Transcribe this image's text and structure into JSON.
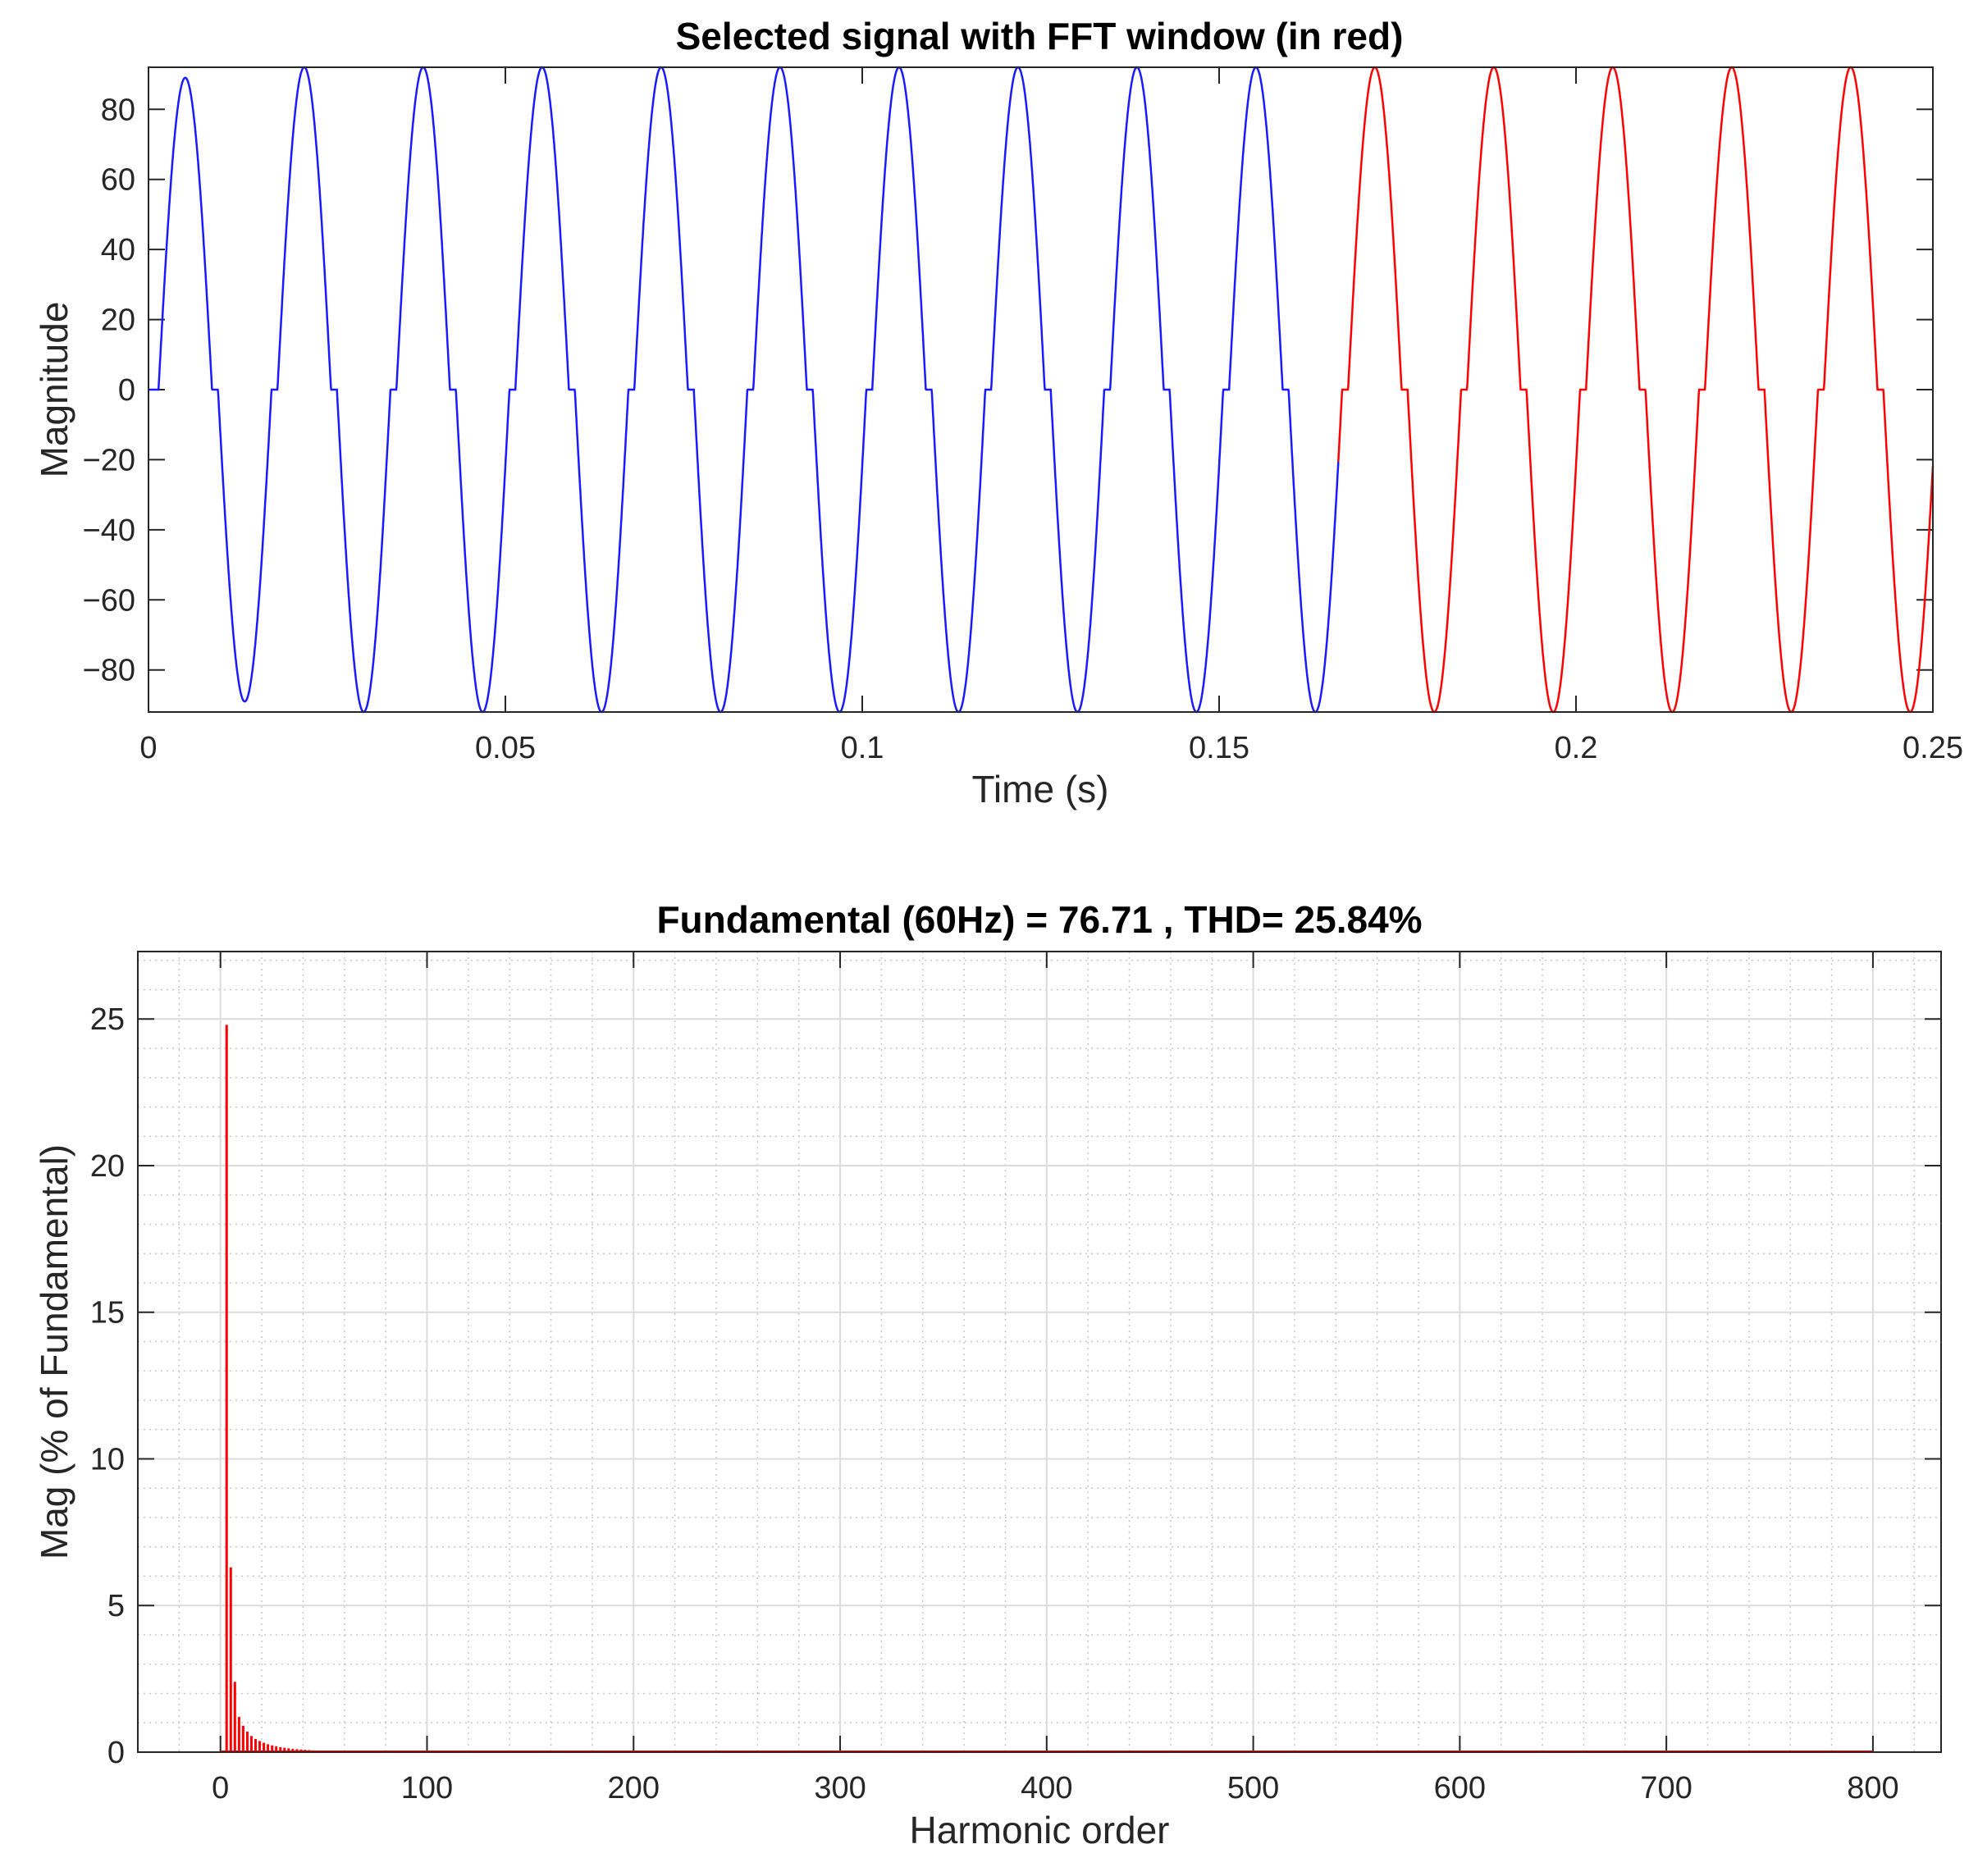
{
  "colors": {
    "signal": "#1a1aff",
    "fft_window": "#ff0000",
    "spectrum": "#ff0000",
    "grid_major": "#dcdcdc",
    "grid_minor": "#c8c8c8",
    "axes": "#262626"
  },
  "chart_data": [
    {
      "type": "line",
      "title": "Selected signal with FFT window (in red)",
      "xlabel": "Time (s)",
      "ylabel": "Magnitude",
      "xlim": [
        0,
        0.25
      ],
      "ylim": [
        -92,
        92
      ],
      "xticks": [
        0,
        0.05,
        0.1,
        0.15,
        0.2,
        0.25
      ],
      "xtick_labels": [
        "0",
        "0.05",
        "0.1",
        "0.15",
        "0.2",
        "0.25"
      ],
      "yticks": [
        -80,
        -60,
        -40,
        -20,
        0,
        20,
        40,
        60,
        80
      ],
      "ytick_labels": [
        "−80",
        "−60",
        "−40",
        "−20",
        "0",
        "20",
        "40",
        "60",
        "80"
      ],
      "grid": false,
      "signal": {
        "fundamental_hz": 60,
        "peak": 92,
        "first_peak": 89,
        "dead_band_s": 0.00083,
        "start_s": 0.0014,
        "end_s": 0.25,
        "fft_window_start_s": 0.1667
      },
      "series": [
        {
          "color_key": "signal",
          "x_range": [
            0,
            0.1667
          ]
        },
        {
          "color_key": "fft_window",
          "x_range": [
            0.1667,
            0.25
          ]
        }
      ]
    },
    {
      "type": "bar",
      "title": "Fundamental (60Hz) = 76.71 , THD= 25.84%",
      "xlabel": "Harmonic order",
      "ylabel": "Mag (% of Fundamental)",
      "xlim": [
        -40,
        833
      ],
      "ylim": [
        0,
        27.3
      ],
      "xticks": [
        0,
        100,
        200,
        300,
        400,
        500,
        600,
        700,
        800
      ],
      "xtick_labels": [
        "0",
        "100",
        "200",
        "300",
        "400",
        "500",
        "600",
        "700",
        "800"
      ],
      "yticks": [
        0,
        5,
        10,
        15,
        20,
        25
      ],
      "ytick_labels": [
        "0",
        "5",
        "10",
        "15",
        "20",
        "25"
      ],
      "grid": true,
      "minor_grid": true,
      "fundamental_hz": 60,
      "fundamental_value": 76.71,
      "thd_percent": 25.84,
      "harmonics": [
        {
          "order": 1,
          "value": 0.05
        },
        {
          "order": 2,
          "value": 0.05
        },
        {
          "order": 3,
          "value": 24.8
        },
        {
          "order": 5,
          "value": 6.3
        },
        {
          "order": 7,
          "value": 2.4
        },
        {
          "order": 9,
          "value": 1.2
        },
        {
          "order": 11,
          "value": 0.9
        },
        {
          "order": 13,
          "value": 0.7
        },
        {
          "order": 15,
          "value": 0.55
        },
        {
          "order": 17,
          "value": 0.45
        },
        {
          "order": 19,
          "value": 0.38
        },
        {
          "order": 21,
          "value": 0.32
        },
        {
          "order": 23,
          "value": 0.27
        },
        {
          "order": 25,
          "value": 0.23
        },
        {
          "order": 27,
          "value": 0.2
        },
        {
          "order": 29,
          "value": 0.17
        },
        {
          "order": 31,
          "value": 0.15
        },
        {
          "order": 33,
          "value": 0.13
        },
        {
          "order": 35,
          "value": 0.11
        },
        {
          "order": 37,
          "value": 0.1
        },
        {
          "order": 39,
          "value": 0.09
        },
        {
          "order": 41,
          "value": 0.08
        },
        {
          "order": 43,
          "value": 0.07
        },
        {
          "order": 45,
          "value": 0.06
        },
        {
          "order": 47,
          "value": 0.05
        },
        {
          "order": 49,
          "value": 0.05
        },
        {
          "order": 51,
          "value": 0.04
        },
        {
          "order": 53,
          "value": 0.04
        },
        {
          "order": 55,
          "value": 0.03
        },
        {
          "order": 57,
          "value": 0.03
        },
        {
          "order": 59,
          "value": 0.03
        }
      ],
      "baseline_to_order": 800
    }
  ]
}
